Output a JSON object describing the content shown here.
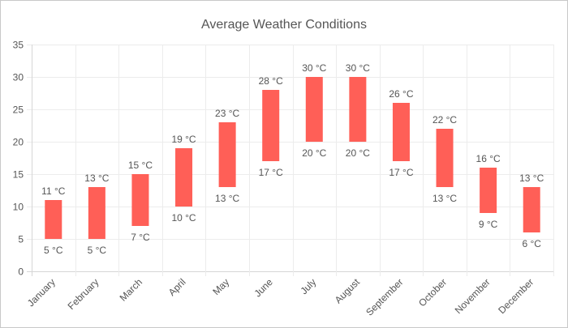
{
  "chart_data": {
    "type": "bar",
    "subtype": "range-bar",
    "title": "Average Weather Conditions",
    "xlabel": "",
    "ylabel": "",
    "ylim": [
      0,
      35
    ],
    "yticks": [
      0,
      5,
      10,
      15,
      20,
      25,
      30,
      35
    ],
    "unit": " °C",
    "color": "#ff5f57",
    "grid": true,
    "legend": "none",
    "categories": [
      "January",
      "February",
      "March",
      "April",
      "May",
      "June",
      "July",
      "August",
      "September",
      "October",
      "November",
      "December"
    ],
    "series": [
      {
        "name": "Min",
        "values": [
          5,
          5,
          7,
          10,
          13,
          17,
          20,
          20,
          17,
          13,
          9,
          6
        ]
      },
      {
        "name": "Max",
        "values": [
          11,
          13,
          15,
          19,
          23,
          28,
          30,
          30,
          26,
          22,
          16,
          13
        ]
      }
    ]
  }
}
